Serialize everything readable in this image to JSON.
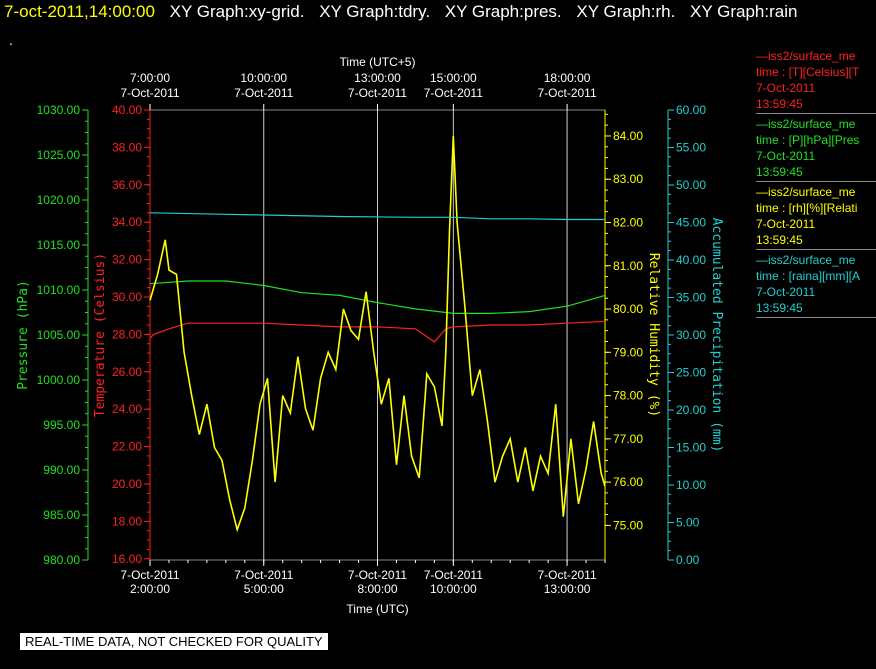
{
  "header": {
    "date_time": "7-oct-2011,14:00:00",
    "menu": [
      "XY Graph:xy-grid.",
      "XY Graph:tdry.",
      "XY Graph:pres.",
      "XY Graph:rh.",
      "XY Graph:rain"
    ],
    "stray_mark": "."
  },
  "colors": {
    "background": "#000000",
    "temperature": "#ff2020",
    "pressure": "#20e020",
    "humidity": "#ffff00",
    "precip": "#20d0d0",
    "grid": "#ffffff"
  },
  "chart_data": {
    "type": "line",
    "top_axis": {
      "title": "Time (UTC+5)",
      "ticks": [
        {
          "time": "7:00:00",
          "date": "7-Oct-2011"
        },
        {
          "time": "10:00:00",
          "date": "7-Oct-2011"
        },
        {
          "time": "13:00:00",
          "date": "7-Oct-2011"
        },
        {
          "time": "15:00:00",
          "date": "7-Oct-2011"
        },
        {
          "time": "18:00:00",
          "date": "7-Oct-2011"
        }
      ]
    },
    "bottom_axis": {
      "title": "Time (UTC)",
      "range_hours": [
        2.0,
        14.0
      ],
      "ticks": [
        {
          "date": "7-Oct-2011",
          "time": "2:00:00",
          "hour": 2
        },
        {
          "date": "7-Oct-2011",
          "time": "5:00:00",
          "hour": 5
        },
        {
          "date": "7-Oct-2011",
          "time": "8:00:00",
          "hour": 8
        },
        {
          "date": "7-Oct-2011",
          "time": "10:00:00",
          "hour": 10
        },
        {
          "date": "7-Oct-2011",
          "time": "13:00:00",
          "hour": 13
        }
      ]
    },
    "axes": {
      "pressure": {
        "label": "Pressure (hPa)",
        "range": [
          980.0,
          1030.0
        ],
        "ticks": [
          "980.00",
          "985.00",
          "990.00",
          "995.00",
          "1000.00",
          "1005.00",
          "1010.00",
          "1015.00",
          "1020.00",
          "1025.00",
          "1030.00"
        ]
      },
      "temperature": {
        "label": "Temperature (Celsius)",
        "range": [
          15.0,
          40.0
        ],
        "ticks": [
          "16.00",
          "18.00",
          "20.00",
          "22.00",
          "24.00",
          "26.00",
          "28.00",
          "30.00",
          "32.00",
          "34.00",
          "36.00",
          "38.00",
          "40.00"
        ]
      },
      "humidity": {
        "label": "Relative Humidity (%)",
        "range": [
          74.2,
          84.6
        ],
        "ticks": [
          "75.00",
          "76.00",
          "77.00",
          "78.00",
          "79.00",
          "80.00",
          "81.00",
          "82.00",
          "83.00",
          "84.00"
        ]
      },
      "precip": {
        "label": "Accumulated Precipitation (mm)",
        "range": [
          0.0,
          60.0
        ],
        "ticks": [
          "0.00",
          "5.00",
          "10.00",
          "15.00",
          "20.00",
          "25.00",
          "30.00",
          "35.00",
          "40.00",
          "45.00",
          "50.00",
          "55.00",
          "60.00"
        ]
      }
    },
    "series": [
      {
        "name": "temperature",
        "axis": "temperature",
        "x_hours": [
          2.0,
          2.1,
          2.5,
          3.0,
          4.0,
          5.0,
          6.0,
          7.0,
          8.0,
          9.0,
          9.5,
          9.8,
          10.0,
          11.0,
          12.0,
          13.0,
          14.0
        ],
        "values": [
          27.8,
          28.0,
          28.3,
          28.6,
          28.6,
          28.6,
          28.5,
          28.4,
          28.4,
          28.3,
          27.6,
          28.3,
          28.4,
          28.5,
          28.5,
          28.6,
          28.7
        ]
      },
      {
        "name": "pressure",
        "axis": "pressure",
        "x_hours": [
          2.0,
          3.0,
          4.0,
          5.0,
          6.0,
          7.0,
          8.0,
          9.0,
          10.0,
          11.0,
          12.0,
          13.0,
          14.0
        ],
        "values": [
          1010.7,
          1011.0,
          1011.0,
          1010.5,
          1009.7,
          1009.4,
          1008.6,
          1007.9,
          1007.4,
          1007.4,
          1007.6,
          1008.2,
          1009.4
        ]
      },
      {
        "name": "relative humidity",
        "axis": "humidity",
        "x_hours": [
          2.0,
          2.2,
          2.4,
          2.5,
          2.7,
          2.9,
          3.1,
          3.3,
          3.5,
          3.7,
          3.9,
          4.1,
          4.3,
          4.5,
          4.7,
          4.9,
          5.1,
          5.3,
          5.5,
          5.7,
          5.9,
          6.1,
          6.3,
          6.5,
          6.7,
          6.9,
          7.1,
          7.3,
          7.5,
          7.7,
          7.9,
          8.1,
          8.3,
          8.5,
          8.7,
          8.9,
          9.1,
          9.3,
          9.5,
          9.7,
          9.8,
          9.9,
          10.0,
          10.1,
          10.3,
          10.5,
          10.7,
          10.9,
          11.1,
          11.3,
          11.5,
          11.7,
          11.9,
          12.1,
          12.3,
          12.5,
          12.7,
          12.9,
          13.1,
          13.3,
          13.5,
          13.7,
          13.9,
          14.0
        ],
        "values": [
          80.2,
          80.8,
          81.6,
          80.9,
          80.8,
          79.0,
          78.0,
          77.1,
          77.8,
          76.8,
          76.5,
          75.6,
          74.9,
          75.4,
          76.5,
          77.8,
          78.4,
          76.0,
          78.0,
          77.6,
          78.9,
          77.7,
          77.2,
          78.4,
          79.0,
          78.6,
          80.0,
          79.5,
          79.3,
          80.4,
          79.0,
          77.8,
          78.4,
          76.4,
          78.0,
          76.6,
          76.1,
          78.5,
          78.2,
          77.3,
          79.0,
          81.8,
          84.0,
          82.0,
          80.1,
          78.0,
          78.6,
          77.4,
          76.0,
          76.6,
          77.0,
          76.0,
          76.8,
          75.8,
          76.6,
          76.2,
          77.8,
          75.2,
          77.0,
          75.5,
          76.3,
          77.4,
          76.2,
          75.9
        ]
      },
      {
        "name": "accumulated precipitation",
        "axis": "precip",
        "x_hours": [
          2.0,
          4.0,
          5.0,
          7.0,
          9.0,
          10.0,
          11.0,
          12.0,
          13.0,
          14.0
        ],
        "values": [
          46.3,
          46.1,
          46.0,
          45.8,
          45.7,
          45.7,
          45.5,
          45.5,
          45.4,
          45.4
        ]
      }
    ]
  },
  "legend": [
    {
      "line1": "—iss2/surface_me",
      "line2": "time : [T][Celsius][T",
      "date": "7-Oct-2011",
      "time": "13:59:45",
      "color": "#ff2020"
    },
    {
      "line1": "—iss2/surface_me",
      "line2": "time : [P][hPa][Pres",
      "date": "7-Oct-2011",
      "time": "13:59:45",
      "color": "#20e020"
    },
    {
      "line1": "—iss2/surface_me",
      "line2": "time : [rh][%][Relati",
      "date": "7-Oct-2011",
      "time": "13:59:45",
      "color": "#ffff00"
    },
    {
      "line1": "—iss2/surface_me",
      "line2": "time : [raina][mm][A",
      "date": "7-Oct-2011",
      "time": "13:59:45",
      "color": "#20d0d0"
    }
  ],
  "banner": "REAL-TIME DATA, NOT CHECKED FOR QUALITY"
}
